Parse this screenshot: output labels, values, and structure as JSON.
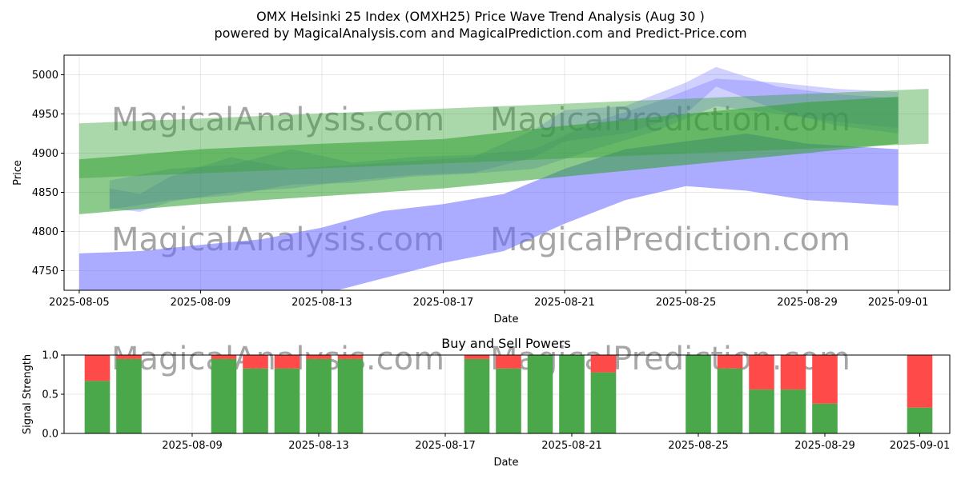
{
  "title_line1": "OMX Helsinki 25 Index (OMXH25) Price Wave Trend Analysis (Aug 30 )",
  "title_line2": "powered by MagicalAnalysis.com and MagicalPrediction.com and Predict-Price.com",
  "watermark_left": "MagicalAnalysis.com",
  "watermark_right": "MagicalPrediction.com",
  "colors": {
    "blue_band": "#6666ff",
    "green_band": "#2e9e2e",
    "buy": "#4aa84a",
    "sell": "#ff4a4a"
  },
  "chart_data": [
    {
      "type": "area",
      "title": "",
      "xlabel": "Date",
      "ylabel": "Price",
      "x_ticks": [
        "2025-08-05",
        "2025-08-09",
        "2025-08-13",
        "2025-08-17",
        "2025-08-21",
        "2025-08-25",
        "2025-08-29",
        "2025-09-01"
      ],
      "y_ticks": [
        4750,
        4800,
        4850,
        4900,
        4950,
        5000
      ],
      "ylim": [
        4725,
        5025
      ],
      "xlim": [
        "2025-08-05",
        "2025-09-02"
      ],
      "grid": true,
      "series": [
        {
          "color": "blue",
          "x": [
            "2025-08-05",
            "2025-08-07",
            "2025-08-09",
            "2025-08-11",
            "2025-08-13",
            "2025-08-15",
            "2025-08-17",
            "2025-08-19",
            "2025-08-21",
            "2025-08-23",
            "2025-08-25",
            "2025-08-27",
            "2025-08-29",
            "2025-09-01"
          ],
          "upper": [
            4772,
            4775,
            4783,
            4790,
            4805,
            4826,
            4835,
            4848,
            4880,
            4905,
            4915,
            4925,
            4912,
            4905
          ],
          "lower": [
            4720,
            4712,
            4710,
            4712,
            4720,
            4740,
            4760,
            4775,
            4810,
            4840,
            4858,
            4852,
            4840,
            4833
          ]
        },
        {
          "color": "blue",
          "x": [
            "2025-08-06",
            "2025-08-07",
            "2025-08-08",
            "2025-08-10",
            "2025-08-12",
            "2025-08-14",
            "2025-08-16",
            "2025-08-18",
            "2025-08-20",
            "2025-08-21",
            "2025-08-23",
            "2025-08-25",
            "2025-08-26",
            "2025-08-28",
            "2025-08-30",
            "2025-09-01"
          ],
          "upper": [
            4855,
            4848,
            4870,
            4895,
            4880,
            4885,
            4890,
            4895,
            4930,
            4955,
            4960,
            4990,
            5010,
            4985,
            4975,
            4970
          ],
          "lower": [
            4830,
            4825,
            4838,
            4850,
            4855,
            4865,
            4872,
            4875,
            4895,
            4915,
            4925,
            4950,
            4985,
            4955,
            4935,
            4925
          ]
        },
        {
          "color": "blue",
          "x": [
            "2025-08-06",
            "2025-08-08",
            "2025-08-10",
            "2025-08-12",
            "2025-08-14",
            "2025-08-16",
            "2025-08-18",
            "2025-08-20",
            "2025-08-22",
            "2025-08-24",
            "2025-08-26",
            "2025-08-28",
            "2025-08-30",
            "2025-09-01"
          ],
          "upper": [
            4865,
            4880,
            4885,
            4905,
            4888,
            4895,
            4898,
            4905,
            4940,
            4965,
            4995,
            4990,
            4982,
            4978
          ],
          "lower": [
            4828,
            4840,
            4846,
            4860,
            4862,
            4870,
            4874,
            4880,
            4905,
            4928,
            4960,
            4950,
            4940,
            4932
          ]
        },
        {
          "color": "green",
          "x": [
            "2025-08-05",
            "2025-09-02"
          ],
          "upper": [
            4938,
            4982
          ],
          "lower": [
            4868,
            4912
          ]
        },
        {
          "color": "green",
          "x": [
            "2025-08-05",
            "2025-08-09",
            "2025-08-13",
            "2025-08-17",
            "2025-08-21",
            "2025-08-25",
            "2025-08-29",
            "2025-09-01"
          ],
          "upper": [
            4892,
            4905,
            4912,
            4918,
            4935,
            4950,
            4965,
            4972
          ],
          "lower": [
            4822,
            4835,
            4845,
            4855,
            4870,
            4885,
            4900,
            4912
          ]
        }
      ]
    },
    {
      "type": "bar",
      "title": "Buy and Sell Powers",
      "xlabel": "Date",
      "ylabel": "Signal Strength",
      "x_ticks": [
        "2025-08-09",
        "2025-08-13",
        "2025-08-17",
        "2025-08-21",
        "2025-08-25",
        "2025-08-29",
        "2025-09-01"
      ],
      "y_ticks": [
        0.0,
        0.5,
        1.0
      ],
      "y_tick_labels": [
        "0.0",
        "0.5",
        "1.0"
      ],
      "ylim": [
        0,
        1
      ],
      "categories": [
        "2025-08-06",
        "2025-08-07",
        "2025-08-10",
        "2025-08-11",
        "2025-08-12",
        "2025-08-13",
        "2025-08-14",
        "2025-08-18",
        "2025-08-19",
        "2025-08-20",
        "2025-08-21",
        "2025-08-22",
        "2025-08-25",
        "2025-08-26",
        "2025-08-27",
        "2025-08-28",
        "2025-08-29",
        "2025-09-01"
      ],
      "series": [
        {
          "name": "Buy",
          "values": [
            0.67,
            0.95,
            0.95,
            0.83,
            0.83,
            0.95,
            0.95,
            0.95,
            0.83,
            1.0,
            1.0,
            0.78,
            1.0,
            0.83,
            0.56,
            0.56,
            0.38,
            0.33
          ]
        },
        {
          "name": "Sell",
          "values": [
            0.33,
            0.05,
            0.05,
            0.17,
            0.17,
            0.05,
            0.05,
            0.05,
            0.17,
            0.0,
            0.0,
            0.22,
            0.0,
            0.17,
            0.44,
            0.44,
            0.62,
            0.67
          ]
        }
      ]
    }
  ]
}
